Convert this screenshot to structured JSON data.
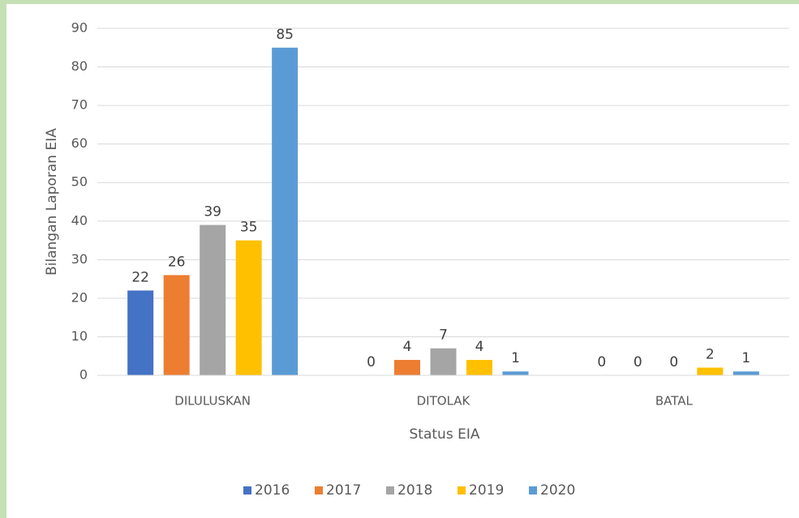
{
  "chart_data": {
    "type": "bar",
    "xlabel": "Status EIA",
    "ylabel": "Bilangan Laporan EIA",
    "categories": [
      "DILULUSKAN",
      "DITOLAK",
      "BATAL"
    ],
    "series": [
      {
        "name": "2016",
        "color": "#4472c4",
        "values": [
          22,
          0,
          0
        ]
      },
      {
        "name": "2017",
        "color": "#ed7d31",
        "values": [
          26,
          4,
          0
        ]
      },
      {
        "name": "2018",
        "color": "#a5a5a5",
        "values": [
          39,
          7,
          0
        ]
      },
      {
        "name": "2019",
        "color": "#ffc000",
        "values": [
          35,
          4,
          2
        ]
      },
      {
        "name": "2020",
        "color": "#5b9bd5",
        "values": [
          85,
          1,
          1
        ]
      }
    ],
    "ylim": [
      0,
      90
    ],
    "yticks": [
      0,
      10,
      20,
      30,
      40,
      50,
      60,
      70,
      80,
      90
    ],
    "grid": true,
    "legend": "bottom"
  }
}
